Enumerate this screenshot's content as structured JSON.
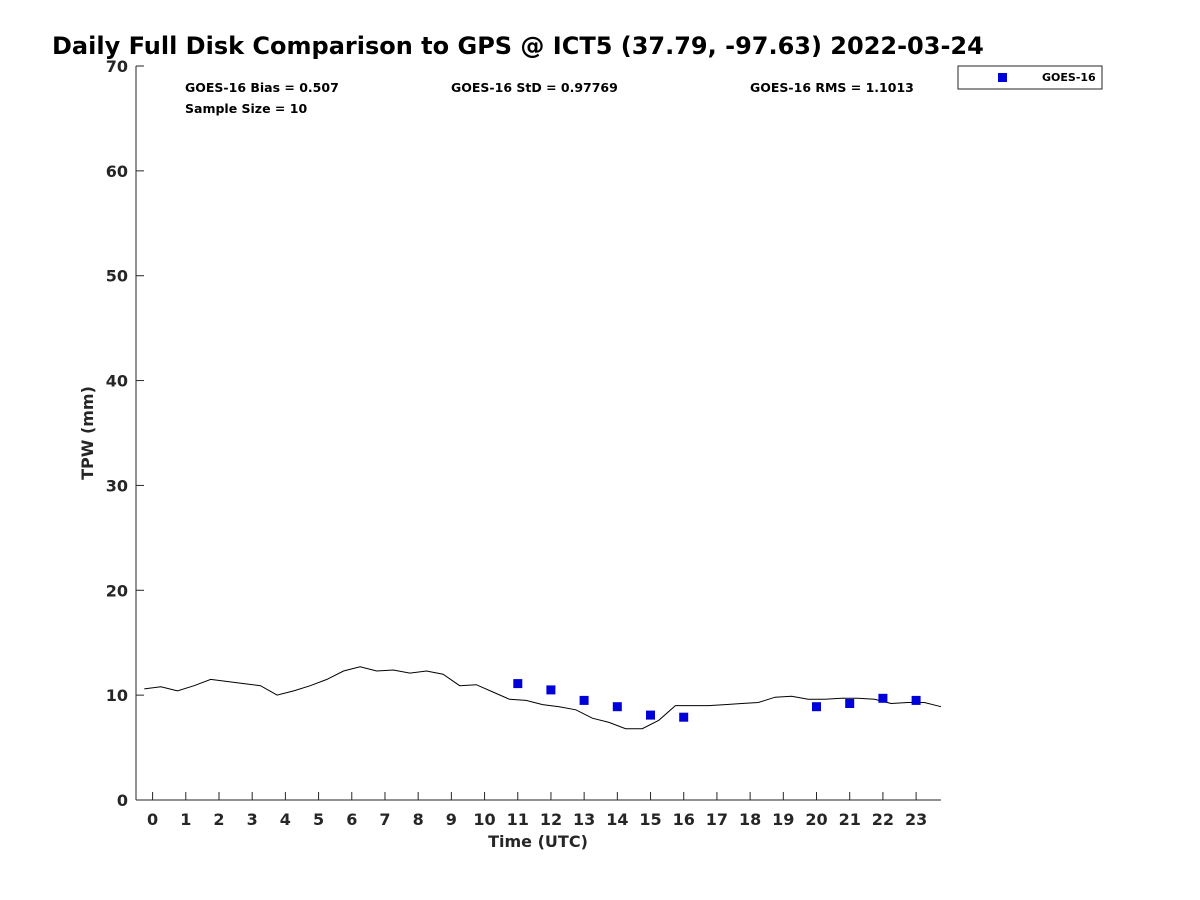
{
  "chart_data": {
    "type": "scatter",
    "title": "Daily Full Disk Comparison to GPS @ ICT5 (37.79, -97.63) 2022-03-24",
    "xlabel": "Time (UTC)",
    "ylabel": "TPW (mm)",
    "xlim": [
      -0.5,
      23.75
    ],
    "ylim": [
      0,
      70
    ],
    "x_ticks": [
      0,
      1,
      2,
      3,
      4,
      5,
      6,
      7,
      8,
      9,
      10,
      11,
      12,
      13,
      14,
      15,
      16,
      17,
      18,
      19,
      20,
      21,
      22,
      23
    ],
    "y_ticks": [
      0,
      10,
      20,
      30,
      40,
      50,
      60,
      70
    ],
    "grid": false,
    "legend_position": "outside-top-right",
    "stats": {
      "bias": "GOES-16 Bias = 0.507",
      "std": "GOES-16 StD = 0.97769",
      "rms": "GOES-16 RMS = 1.1013",
      "sample": "Sample Size = 10"
    },
    "series": [
      {
        "name": "GOES-16",
        "kind": "scatter",
        "color": "#0000d8",
        "marker": "square",
        "x": [
          11,
          12,
          13,
          14,
          15,
          16,
          20,
          21,
          22,
          23
        ],
        "y": [
          11.1,
          10.5,
          9.5,
          8.9,
          8.1,
          7.9,
          8.9,
          9.2,
          9.7,
          9.5
        ]
      },
      {
        "kind": "line",
        "color": "#000000",
        "x": [
          -0.25,
          0.25,
          0.75,
          1.25,
          1.75,
          2.25,
          2.75,
          3.25,
          3.75,
          4.25,
          4.75,
          5.25,
          5.75,
          6.25,
          6.75,
          7.25,
          7.75,
          8.25,
          8.75,
          9.25,
          9.75,
          10.25,
          10.75,
          11.25,
          11.75,
          12.25,
          12.75,
          13.25,
          13.75,
          14.25,
          14.75,
          15.25,
          15.75,
          16.25,
          16.75,
          17.25,
          17.75,
          18.25,
          18.75,
          19.25,
          19.75,
          20.25,
          20.75,
          21.25,
          21.75,
          22.25,
          22.75,
          23.25,
          23.75
        ],
        "y": [
          10.6,
          10.8,
          10.4,
          10.9,
          11.5,
          11.3,
          11.1,
          10.9,
          10.0,
          10.4,
          10.9,
          11.5,
          12.3,
          12.7,
          12.3,
          12.4,
          12.1,
          12.3,
          12.0,
          10.9,
          11.0,
          10.3,
          9.6,
          9.5,
          9.1,
          8.9,
          8.6,
          7.8,
          7.4,
          6.8,
          6.8,
          7.6,
          9.0,
          9.0,
          9.0,
          9.1,
          9.2,
          9.3,
          9.8,
          9.9,
          9.6,
          9.6,
          9.7,
          9.7,
          9.6,
          9.2,
          9.3,
          9.3,
          8.9
        ]
      }
    ]
  }
}
